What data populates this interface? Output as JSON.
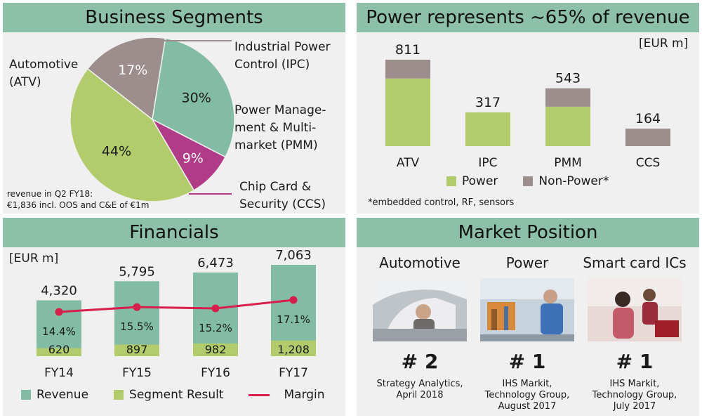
{
  "segments_panel": {
    "title": "Business Segments",
    "labels": {
      "atv": "Automotive\n(ATV)",
      "ipc": "Industrial Power\nControl (IPC)",
      "pmm": "Power Manage-\nment & Multi-\nmarket (PMM)",
      "ccs": "Chip Card &\nSecurity (CCS)"
    },
    "footnote": "revenue in Q2 FY18:\n€1,836 incl. OOS and C&E of €1m"
  },
  "power_panel": {
    "title": "Power represents ~65% of revenue",
    "unit": "[EUR m]",
    "legend_power": "Power",
    "legend_nonpower": "Non-Power*",
    "footnote": "*embedded control, RF, sensors"
  },
  "financials_panel": {
    "title": "Financials",
    "unit": "[EUR m]",
    "legend_revenue": "Revenue",
    "legend_segment": "Segment Result",
    "legend_margin": "Margin"
  },
  "market_panel": {
    "title": "Market Position",
    "items": [
      {
        "title": "Automotive",
        "rank": "# 2",
        "source": "Strategy Analytics,\nApril 2018"
      },
      {
        "title": "Power",
        "rank": "# 1",
        "source": "IHS Markit,\nTechnology Group,\nAugust 2017"
      },
      {
        "title": "Smart card ICs",
        "rank": "# 1",
        "source": "IHS Markit,\nTechnology Group,\nJuly 2017"
      }
    ]
  },
  "colors": {
    "header": "#8cc0a9",
    "green": "#b3cc6b",
    "teal": "#83bca5",
    "mauve": "#9c8e8c",
    "magenta": "#b03b87",
    "red": "#d81e4a"
  },
  "chart_data": [
    {
      "type": "pie",
      "title": "Business Segments",
      "categories": [
        "Automotive (ATV)",
        "Industrial Power Control (IPC)",
        "Power Management & Multimarket (PMM)",
        "Chip Card & Security (CCS)"
      ],
      "values": [
        44,
        17,
        30,
        9
      ],
      "value_labels": [
        "44%",
        "17%",
        "30%",
        "9%"
      ]
    },
    {
      "type": "bar",
      "stacked": true,
      "title": "Power represents ~65% of revenue",
      "categories": [
        "ATV",
        "IPC",
        "PMM",
        "CCS"
      ],
      "totals": [
        811,
        317,
        543,
        164
      ],
      "series": [
        {
          "name": "Power",
          "values": [
            635,
            317,
            370,
            0
          ]
        },
        {
          "name": "Non-Power*",
          "values": [
            176,
            0,
            173,
            164
          ]
        }
      ],
      "ylabel": "[EUR m]",
      "ylim": [
        0,
        900
      ]
    },
    {
      "type": "bar",
      "title": "Financials",
      "categories": [
        "FY14",
        "FY15",
        "FY16",
        "FY17"
      ],
      "series": [
        {
          "name": "Revenue",
          "values": [
            4320,
            5795,
            6473,
            7063
          ],
          "labels": [
            "4,320",
            "5,795",
            "6,473",
            "7,063"
          ]
        },
        {
          "name": "Segment Result",
          "values": [
            620,
            897,
            982,
            1208
          ],
          "labels": [
            "620",
            "897",
            "982",
            "1,208"
          ]
        },
        {
          "name": "Margin",
          "type": "line",
          "values": [
            14.4,
            15.5,
            15.2,
            17.1
          ],
          "labels": [
            "14.4%",
            "15.5%",
            "15.2%",
            "17.1%"
          ]
        }
      ],
      "ylabel": "[EUR m]",
      "ylim": [
        0,
        7500
      ]
    }
  ]
}
